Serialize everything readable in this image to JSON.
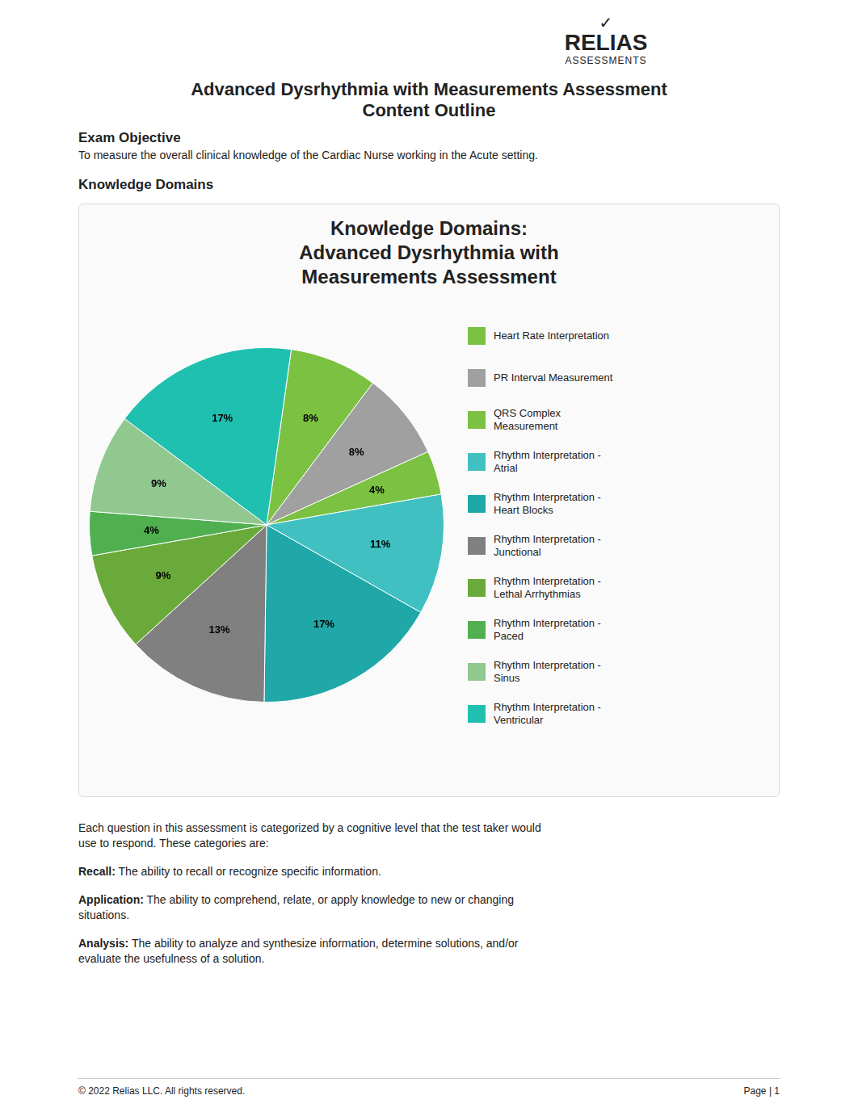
{
  "chart_data": {
    "type": "pie",
    "title": "Knowledge Domains:\nAdvanced Dysrhythmia with\nMeasurements Assessment",
    "annotations": [
      "RELIAS",
      "ASSESSMENTS",
      "✓",
      "Advanced Dysrhythmia with Measurements Assessment",
      "Content Outline",
      "Exam Objective",
      "To measure the overall clinical knowledge of the Cardiac Nurse working in the Acute setting.",
      "Knowledge Domains",
      "Each question in this assessment is categorized by a cognitive level that the test taker would\nuse to respond. These categories are:",
      "Recall:",
      " The ability to recall or recognize specific information.",
      "Application:",
      " The ability to comprehend, relate, or apply knowledge to new or changing\nsituations.",
      "Analysis:",
      " The ability to analyze and synthesize information, determine solutions, and/or\nevaluate the usefulness of a solution.",
      "© 2022 Relias LLC. All rights reserved.",
      "Page | 1"
    ],
    "categories": [
      "Heart Rate Interpretation",
      "PR Interval Measurement",
      "QRS Complex\nMeasurement",
      "Rhythm Interpretation -\nAtrial",
      "Rhythm Interpretation -\nHeart Blocks",
      "Rhythm Interpretation -\nJunctional",
      "Rhythm Interpretation -\nLethal Arrhythmias",
      "Rhythm Interpretation -\nPaced",
      "Rhythm Interpretation -\nSinus",
      "Rhythm Interpretation -\nVentricular"
    ],
    "values": [
      8,
      8,
      4,
      11,
      17,
      13,
      9,
      4,
      9,
      17
    ],
    "value_labels": [
      "8%",
      "8%",
      "4%",
      "11%",
      "17%",
      "13%",
      "9%",
      "4%",
      "9%",
      "17%"
    ],
    "data_labels": true,
    "colors": [
      "#7bc142",
      "#a0a0a0",
      "#7bc142",
      "#40c0c0",
      "#20a8a8",
      "#808080",
      "#6aaa3a",
      "#50b050",
      "#90c890",
      "#20c0b0"
    ],
    "legend": "right"
  }
}
